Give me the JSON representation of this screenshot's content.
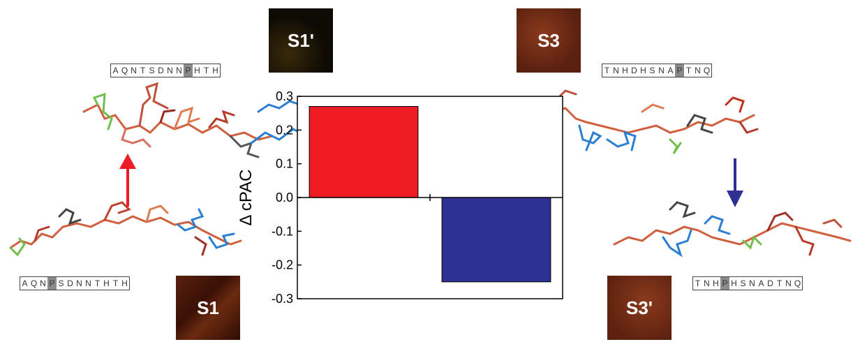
{
  "panels": {
    "s1_prime": {
      "label": "S1'",
      "tone": "#1a1408"
    },
    "s3": {
      "label": "S3",
      "tone": "#6b2a12"
    },
    "s1": {
      "label": "S1",
      "tone": "#4a1a0a"
    },
    "s3_prime": {
      "label": "S3'",
      "tone": "#6e2a14"
    }
  },
  "sequences": {
    "top_left": {
      "text": "AQNTSDNNPHTH",
      "highlight_index": 8
    },
    "top_right": {
      "text": "TNHDHSNAPTNQ",
      "highlight_index": 8
    },
    "bottom_left": {
      "text": "AQNPSDNNTHTH",
      "highlight_index": 3
    },
    "bottom_right": {
      "text": "TNHPHSNADTNQ",
      "highlight_index": 3
    }
  },
  "arrows": {
    "left": {
      "direction": "up",
      "color": "#ee1c25"
    },
    "right": {
      "direction": "down",
      "color": "#2e3192"
    }
  },
  "chart_data": {
    "type": "bar",
    "ylabel": "Δ cPAC",
    "ylim": [
      -0.3,
      0.3
    ],
    "ytick_labels": [
      "0.3",
      "0.2",
      "0.1",
      "0.0",
      "-0.1",
      "-0.2",
      "-0.3"
    ],
    "yticks": [
      0.3,
      0.2,
      0.1,
      0.0,
      -0.1,
      -0.2,
      -0.3
    ],
    "categories": [
      "left",
      "right"
    ],
    "values": [
      0.27,
      -0.25
    ],
    "colors": [
      "#ee1c25",
      "#2e3192"
    ],
    "grid": false
  }
}
